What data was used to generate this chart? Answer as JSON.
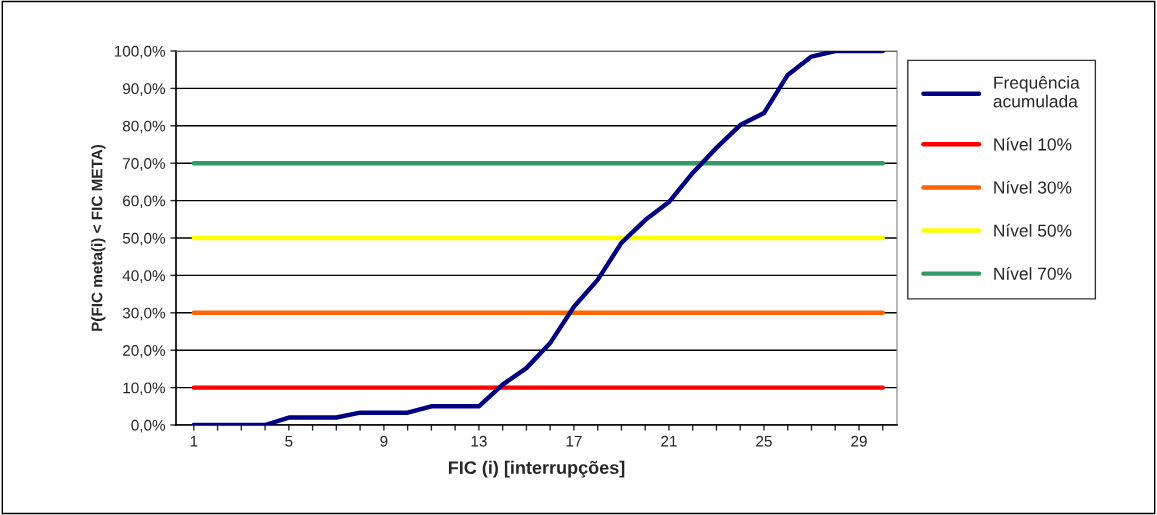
{
  "chart_data": {
    "type": "line",
    "xlabel": "FIC (i) [interrupções]",
    "ylabel": "P(FIC meta(i) < FIC META)",
    "categories": [
      "1",
      null,
      null,
      null,
      "5",
      null,
      null,
      null,
      "9",
      null,
      null,
      null,
      "13",
      null,
      null,
      null,
      "17",
      null,
      null,
      null,
      "21",
      null,
      null,
      null,
      "25",
      null,
      null,
      null,
      "29",
      null
    ],
    "series": [
      {
        "name": "Frequência\nacumulada",
        "color": "#000080",
        "values": [
          0,
          0,
          0,
          0,
          2,
          2,
          2,
          3.3,
          3.3,
          3.3,
          5,
          5,
          5,
          10.8,
          15.2,
          21.9,
          31.6,
          38.8,
          48.7,
          54.8,
          59.6,
          67.4,
          74.1,
          80.2,
          83.4,
          93.6,
          98.5,
          100,
          100,
          100
        ]
      },
      {
        "name": "Nível 10%",
        "color": "#ff0000",
        "values": [
          10,
          10,
          10,
          10,
          10,
          10,
          10,
          10,
          10,
          10,
          10,
          10,
          10,
          10,
          10,
          10,
          10,
          10,
          10,
          10,
          10,
          10,
          10,
          10,
          10,
          10,
          10,
          10,
          10,
          10
        ]
      },
      {
        "name": "Nível 30%",
        "color": "#ff6600",
        "values": [
          30,
          30,
          30,
          30,
          30,
          30,
          30,
          30,
          30,
          30,
          30,
          30,
          30,
          30,
          30,
          30,
          30,
          30,
          30,
          30,
          30,
          30,
          30,
          30,
          30,
          30,
          30,
          30,
          30,
          30
        ]
      },
      {
        "name": "Nível 50%",
        "color": "#ffff00",
        "values": [
          50,
          50,
          50,
          50,
          50,
          50,
          50,
          50,
          50,
          50,
          50,
          50,
          50,
          50,
          50,
          50,
          50,
          50,
          50,
          50,
          50,
          50,
          50,
          50,
          50,
          50,
          50,
          50,
          50,
          50
        ]
      },
      {
        "name": "Nível 70%",
        "color": "#339966",
        "values": [
          70,
          70,
          70,
          70,
          70,
          70,
          70,
          70,
          70,
          70,
          70,
          70,
          70,
          70,
          70,
          70,
          70,
          70,
          70,
          70,
          70,
          70,
          70,
          70,
          70,
          70,
          70,
          70,
          70,
          70
        ]
      }
    ],
    "ylim": [
      0,
      100
    ],
    "yticks": [
      {
        "value": 0,
        "label": "0,0%"
      },
      {
        "value": 10,
        "label": "10,0%"
      },
      {
        "value": 20,
        "label": "20,0%"
      },
      {
        "value": 30,
        "label": "30,0%"
      },
      {
        "value": 40,
        "label": "40,0%"
      },
      {
        "value": 50,
        "label": "50,0%"
      },
      {
        "value": 60,
        "label": "60,0%"
      },
      {
        "value": 70,
        "label": "70,0%"
      },
      {
        "value": 80,
        "label": "80,0%"
      },
      {
        "value": 90,
        "label": "90,0%"
      },
      {
        "value": 100,
        "label": "100,0%"
      }
    ],
    "grid": "y",
    "legend": "right",
    "marker": "none",
    "line_style": "solid"
  }
}
